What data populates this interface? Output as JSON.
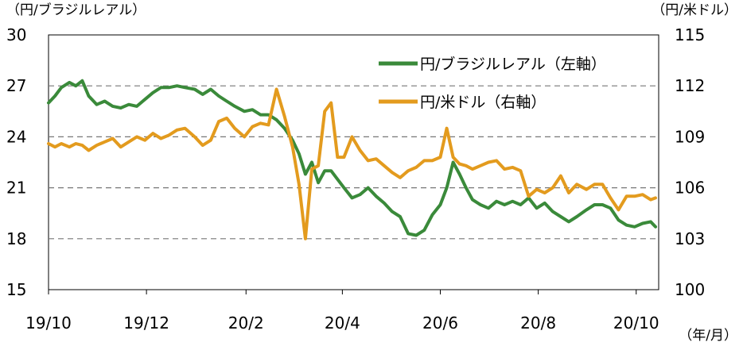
{
  "chart_data": {
    "type": "line",
    "left_axis_unit": "（円/ブラジルレアル）",
    "right_axis_unit": "（円/米ドル）",
    "x_axis_unit": "（年/月）",
    "x_tick_labels": [
      "19/10",
      "19/12",
      "20/2",
      "20/4",
      "20/6",
      "20/8",
      "20/10"
    ],
    "left_axis": {
      "min": 15,
      "max": 30,
      "ticks": [
        "15",
        "18",
        "21",
        "24",
        "27",
        "30"
      ]
    },
    "right_axis": {
      "min": 100,
      "max": 115,
      "ticks": [
        "100",
        "103",
        "106",
        "109",
        "112",
        "115"
      ]
    },
    "grid": "dashed lines at 18, 21, 24, 27",
    "legend_position": "top-right",
    "series": [
      {
        "name": "円/ブラジルレアル（左軸）",
        "axis": "left",
        "color": "#3a8a3a",
        "points": [
          [
            "2019-10-01",
            26.0
          ],
          [
            "2019-10-05",
            26.4
          ],
          [
            "2019-10-09",
            26.9
          ],
          [
            "2019-10-14",
            27.2
          ],
          [
            "2019-10-18",
            27.0
          ],
          [
            "2019-10-22",
            27.3
          ],
          [
            "2019-10-26",
            26.4
          ],
          [
            "2019-10-31",
            25.9
          ],
          [
            "2019-11-05",
            26.1
          ],
          [
            "2019-11-10",
            25.8
          ],
          [
            "2019-11-15",
            25.7
          ],
          [
            "2019-11-20",
            25.9
          ],
          [
            "2019-11-25",
            25.8
          ],
          [
            "2019-11-30",
            26.2
          ],
          [
            "2019-12-05",
            26.6
          ],
          [
            "2019-12-10",
            26.9
          ],
          [
            "2019-12-15",
            26.9
          ],
          [
            "2019-12-20",
            27.0
          ],
          [
            "2019-12-25",
            26.9
          ],
          [
            "2019-12-31",
            26.8
          ],
          [
            "2020-01-05",
            26.5
          ],
          [
            "2020-01-10",
            26.8
          ],
          [
            "2020-01-15",
            26.4
          ],
          [
            "2020-01-20",
            26.1
          ],
          [
            "2020-01-25",
            25.8
          ],
          [
            "2020-01-31",
            25.5
          ],
          [
            "2020-02-05",
            25.6
          ],
          [
            "2020-02-10",
            25.3
          ],
          [
            "2020-02-15",
            25.3
          ],
          [
            "2020-02-20",
            25.0
          ],
          [
            "2020-02-25",
            24.5
          ],
          [
            "2020-03-01",
            23.8
          ],
          [
            "2020-03-05",
            23.0
          ],
          [
            "2020-03-09",
            21.8
          ],
          [
            "2020-03-13",
            22.5
          ],
          [
            "2020-03-17",
            21.3
          ],
          [
            "2020-03-21",
            22.0
          ],
          [
            "2020-03-25",
            22.0
          ],
          [
            "2020-03-29",
            21.5
          ],
          [
            "2020-04-02",
            21.0
          ],
          [
            "2020-04-07",
            20.4
          ],
          [
            "2020-04-12",
            20.6
          ],
          [
            "2020-04-17",
            21.0
          ],
          [
            "2020-04-22",
            20.5
          ],
          [
            "2020-04-27",
            20.1
          ],
          [
            "2020-05-02",
            19.6
          ],
          [
            "2020-05-07",
            19.3
          ],
          [
            "2020-05-12",
            18.3
          ],
          [
            "2020-05-17",
            18.2
          ],
          [
            "2020-05-22",
            18.5
          ],
          [
            "2020-05-27",
            19.4
          ],
          [
            "2020-06-01",
            20.0
          ],
          [
            "2020-06-05",
            21.0
          ],
          [
            "2020-06-09",
            22.5
          ],
          [
            "2020-06-13",
            21.8
          ],
          [
            "2020-06-17",
            21.0
          ],
          [
            "2020-06-21",
            20.3
          ],
          [
            "2020-06-26",
            20.0
          ],
          [
            "2020-07-01",
            19.8
          ],
          [
            "2020-07-06",
            20.2
          ],
          [
            "2020-07-11",
            20.0
          ],
          [
            "2020-07-16",
            20.2
          ],
          [
            "2020-07-21",
            20.0
          ],
          [
            "2020-07-26",
            20.4
          ],
          [
            "2020-07-31",
            19.8
          ],
          [
            "2020-08-05",
            20.1
          ],
          [
            "2020-08-10",
            19.6
          ],
          [
            "2020-08-15",
            19.3
          ],
          [
            "2020-08-20",
            19.0
          ],
          [
            "2020-08-25",
            19.3
          ],
          [
            "2020-08-31",
            19.7
          ],
          [
            "2020-09-05",
            20.0
          ],
          [
            "2020-09-10",
            20.0
          ],
          [
            "2020-09-15",
            19.8
          ],
          [
            "2020-09-20",
            19.1
          ],
          [
            "2020-09-25",
            18.8
          ],
          [
            "2020-09-30",
            18.7
          ],
          [
            "2020-10-05",
            18.9
          ],
          [
            "2020-10-10",
            19.0
          ],
          [
            "2020-10-13",
            18.7
          ]
        ]
      },
      {
        "name": "円/米ドル（右軸）",
        "axis": "right",
        "color": "#e39b1e",
        "points": [
          [
            "2019-10-01",
            108.6
          ],
          [
            "2019-10-05",
            108.4
          ],
          [
            "2019-10-09",
            108.6
          ],
          [
            "2019-10-14",
            108.4
          ],
          [
            "2019-10-18",
            108.6
          ],
          [
            "2019-10-22",
            108.5
          ],
          [
            "2019-10-26",
            108.2
          ],
          [
            "2019-10-31",
            108.5
          ],
          [
            "2019-11-05",
            108.7
          ],
          [
            "2019-11-10",
            108.9
          ],
          [
            "2019-11-15",
            108.4
          ],
          [
            "2019-11-20",
            108.7
          ],
          [
            "2019-11-25",
            109.0
          ],
          [
            "2019-11-30",
            108.8
          ],
          [
            "2019-12-05",
            109.2
          ],
          [
            "2019-12-10",
            108.9
          ],
          [
            "2019-12-15",
            109.1
          ],
          [
            "2019-12-20",
            109.4
          ],
          [
            "2019-12-25",
            109.5
          ],
          [
            "2019-12-31",
            109.0
          ],
          [
            "2020-01-05",
            108.5
          ],
          [
            "2020-01-10",
            108.8
          ],
          [
            "2020-01-15",
            109.9
          ],
          [
            "2020-01-20",
            110.1
          ],
          [
            "2020-01-25",
            109.5
          ],
          [
            "2020-01-31",
            109.0
          ],
          [
            "2020-02-05",
            109.6
          ],
          [
            "2020-02-10",
            109.8
          ],
          [
            "2020-02-15",
            109.7
          ],
          [
            "2020-02-20",
            111.8
          ],
          [
            "2020-02-25",
            110.2
          ],
          [
            "2020-03-01",
            108.4
          ],
          [
            "2020-03-05",
            106.2
          ],
          [
            "2020-03-09",
            103.0
          ],
          [
            "2020-03-13",
            107.1
          ],
          [
            "2020-03-17",
            107.3
          ],
          [
            "2020-03-21",
            110.5
          ],
          [
            "2020-03-25",
            111.0
          ],
          [
            "2020-03-29",
            107.8
          ],
          [
            "2020-04-02",
            107.8
          ],
          [
            "2020-04-07",
            109.0
          ],
          [
            "2020-04-12",
            108.2
          ],
          [
            "2020-04-17",
            107.6
          ],
          [
            "2020-04-22",
            107.7
          ],
          [
            "2020-04-27",
            107.3
          ],
          [
            "2020-05-02",
            106.9
          ],
          [
            "2020-05-07",
            106.6
          ],
          [
            "2020-05-12",
            107.0
          ],
          [
            "2020-05-17",
            107.2
          ],
          [
            "2020-05-22",
            107.6
          ],
          [
            "2020-05-27",
            107.6
          ],
          [
            "2020-06-01",
            107.8
          ],
          [
            "2020-06-05",
            109.5
          ],
          [
            "2020-06-09",
            107.8
          ],
          [
            "2020-06-13",
            107.4
          ],
          [
            "2020-06-17",
            107.3
          ],
          [
            "2020-06-21",
            107.1
          ],
          [
            "2020-06-26",
            107.3
          ],
          [
            "2020-07-01",
            107.5
          ],
          [
            "2020-07-06",
            107.6
          ],
          [
            "2020-07-11",
            107.1
          ],
          [
            "2020-07-16",
            107.2
          ],
          [
            "2020-07-21",
            107.0
          ],
          [
            "2020-07-26",
            105.5
          ],
          [
            "2020-07-31",
            105.9
          ],
          [
            "2020-08-05",
            105.7
          ],
          [
            "2020-08-10",
            106.0
          ],
          [
            "2020-08-15",
            106.7
          ],
          [
            "2020-08-20",
            105.7
          ],
          [
            "2020-08-25",
            106.2
          ],
          [
            "2020-08-31",
            105.9
          ],
          [
            "2020-09-05",
            106.2
          ],
          [
            "2020-09-10",
            106.2
          ],
          [
            "2020-09-15",
            105.4
          ],
          [
            "2020-09-20",
            104.7
          ],
          [
            "2020-09-25",
            105.5
          ],
          [
            "2020-09-30",
            105.5
          ],
          [
            "2020-10-05",
            105.6
          ],
          [
            "2020-10-10",
            105.3
          ],
          [
            "2020-10-13",
            105.4
          ]
        ]
      }
    ]
  }
}
